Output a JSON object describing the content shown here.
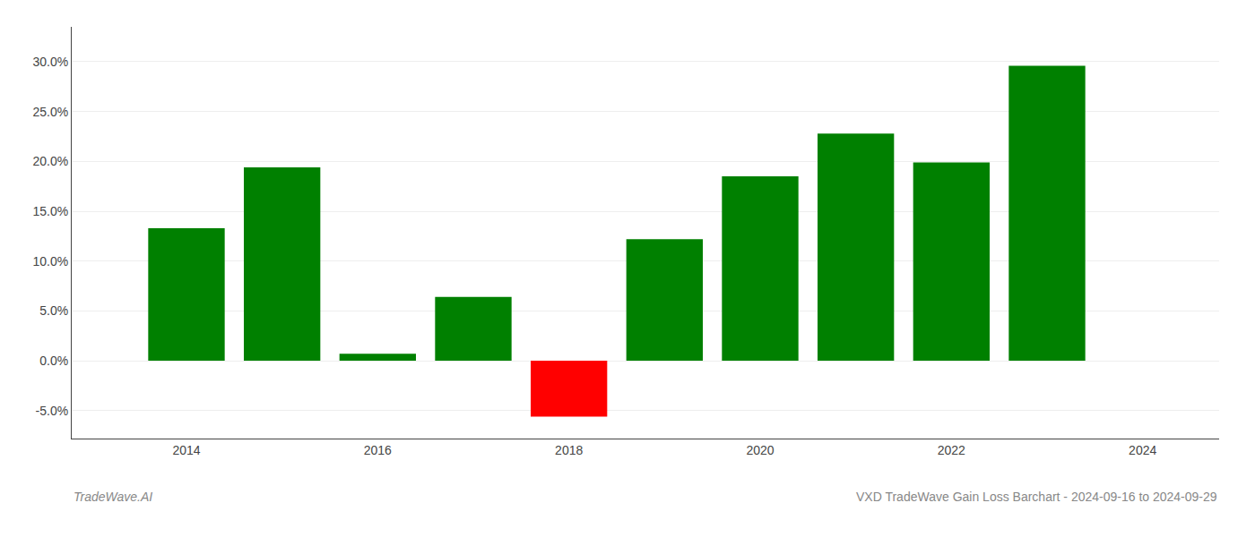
{
  "chart_data": {
    "type": "bar",
    "title": "VXD TradeWave Gain Loss Barchart - 2024-09-16 to 2024-09-29",
    "annotations": [
      "TradeWave.AI"
    ],
    "x": [
      2014,
      2015,
      2016,
      2017,
      2018,
      2019,
      2020,
      2021,
      2022,
      2023
    ],
    "values": [
      0.133,
      0.194,
      0.007,
      0.064,
      -0.056,
      0.122,
      0.185,
      0.228,
      0.199,
      0.296
    ],
    "colors": [
      "#008000",
      "#008000",
      "#008000",
      "#008000",
      "#ff0000",
      "#008000",
      "#008000",
      "#008000",
      "#008000",
      "#008000"
    ],
    "xlim": [
      2012.8,
      2024.8
    ],
    "xticks": [
      2014,
      2016,
      2018,
      2020,
      2022,
      2024
    ],
    "ylim": [
      -0.078,
      0.335
    ],
    "yticks": [
      {
        "value": -0.05,
        "label": "-5.0%"
      },
      {
        "value": 0.0,
        "label": "0.0%"
      },
      {
        "value": 0.05,
        "label": "5.0%"
      },
      {
        "value": 0.1,
        "label": "10.0%"
      },
      {
        "value": 0.15,
        "label": "15.0%"
      },
      {
        "value": 0.2,
        "label": "20.0%"
      },
      {
        "value": 0.25,
        "label": "25.0%"
      },
      {
        "value": 0.3,
        "label": "30.0%"
      }
    ],
    "grid": true
  }
}
